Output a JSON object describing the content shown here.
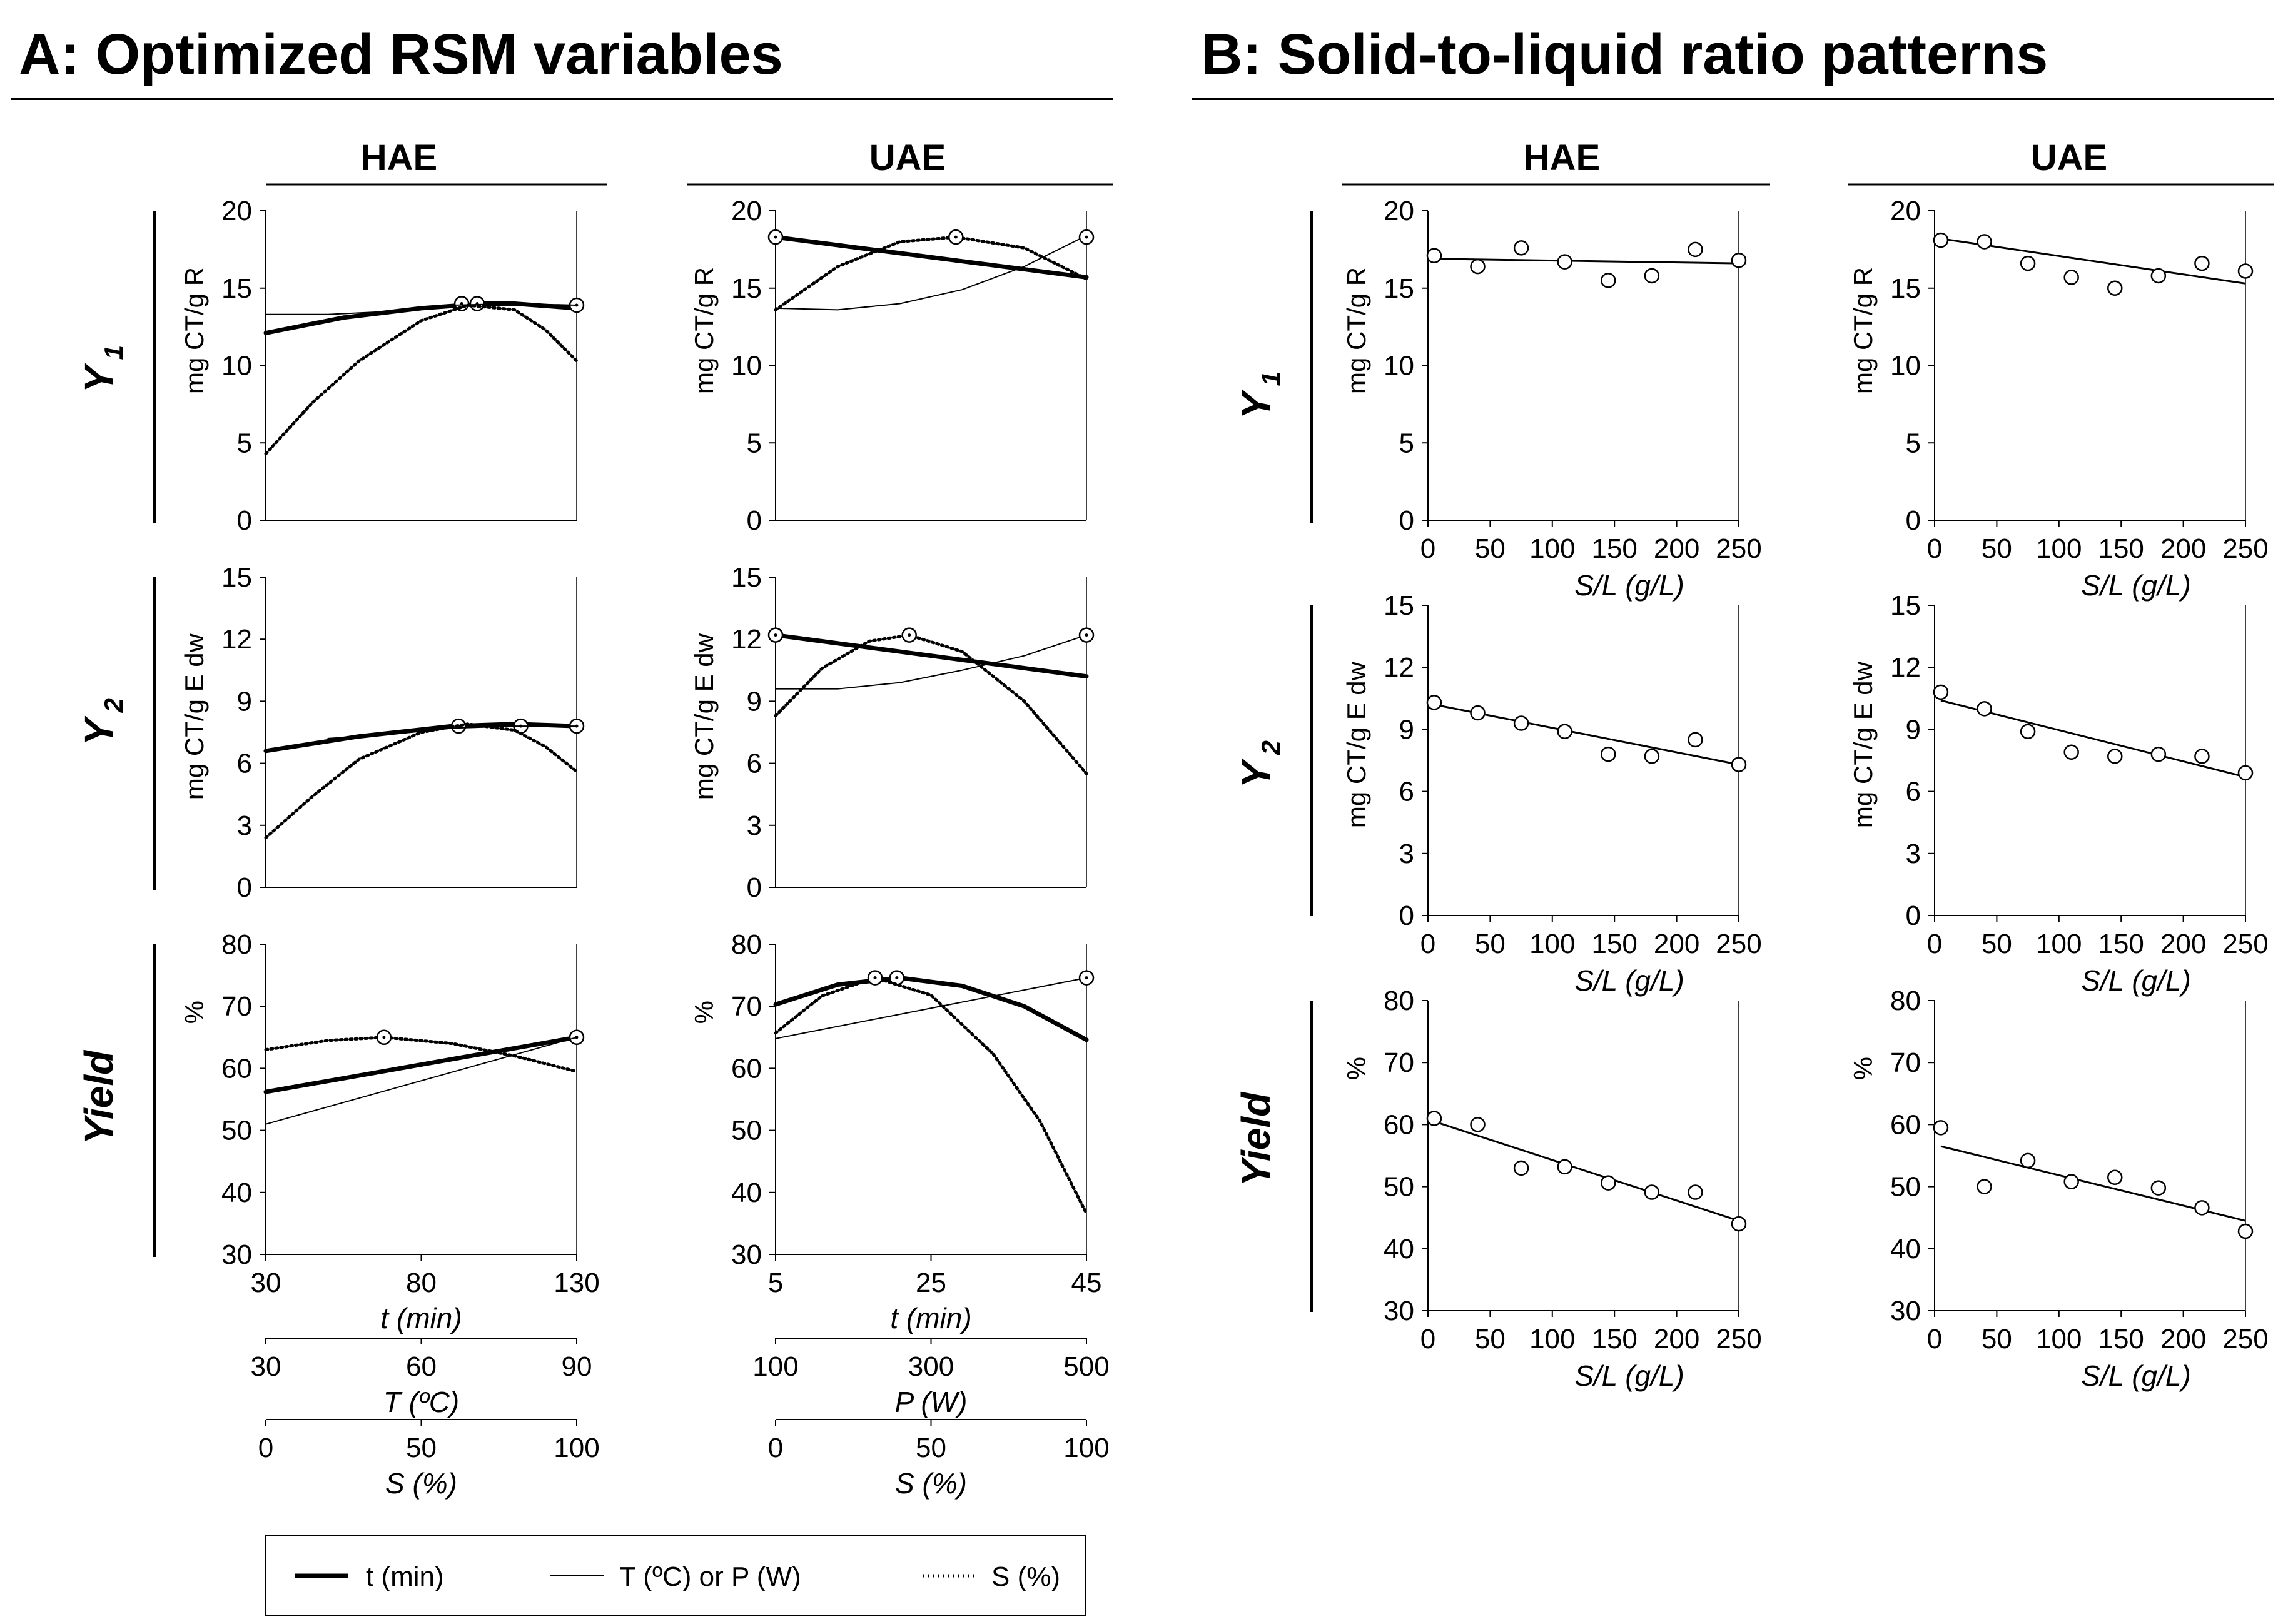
{
  "panels": {
    "A": {
      "title": "A: Optimized RSM variables"
    },
    "B": {
      "title": "B:  Solid-to-liquid ratio patterns"
    }
  },
  "columns": [
    "HAE",
    "UAE",
    "HAE",
    "UAE"
  ],
  "rows": [
    {
      "label": "Y",
      "sub": "1",
      "ylabel": "mg CT/g R",
      "ylim": [
        0,
        20
      ],
      "ticks": [
        0,
        5,
        10,
        15,
        20
      ]
    },
    {
      "label": "Y",
      "sub": "2",
      "ylabel": "mg CT/g E dw",
      "ylim": [
        0,
        15
      ],
      "ticks": [
        0,
        3,
        6,
        9,
        12,
        15
      ]
    },
    {
      "label": "Yield",
      "sub": "",
      "ylabel": "%",
      "ylim": [
        30,
        80
      ],
      "ticks": [
        30,
        40,
        50,
        60,
        70,
        80
      ]
    }
  ],
  "axesA": {
    "HAE": [
      {
        "label": "t (min)",
        "ticks": [
          30,
          80,
          130
        ],
        "range": [
          30,
          130
        ]
      },
      {
        "label": "T (ºC)",
        "ticks": [
          30,
          60,
          90
        ],
        "range": [
          30,
          90
        ]
      },
      {
        "label": "S (%)",
        "ticks": [
          0,
          50,
          100
        ],
        "range": [
          0,
          100
        ]
      }
    ],
    "UAE": [
      {
        "label": "t (min)",
        "ticks": [
          5,
          25,
          45
        ],
        "range": [
          5,
          45
        ]
      },
      {
        "label": "P (W)",
        "ticks": [
          100,
          300,
          500
        ],
        "range": [
          100,
          500
        ]
      },
      {
        "label": "S (%)",
        "ticks": [
          0,
          50,
          100
        ],
        "range": [
          0,
          100
        ]
      }
    ]
  },
  "legend": {
    "t": "t (min)",
    "tp": "T (ºC) or P (W)",
    "s": "S (%)"
  },
  "chart_data": [
    {
      "type": "line",
      "title": "A: HAE Y1",
      "ylabel": "mg CT/g R",
      "ylim": [
        0,
        20
      ],
      "x_normalized": [
        0,
        1
      ],
      "series": [
        {
          "name": "t (min)",
          "points": [
            [
              0,
              12.1
            ],
            [
              0.25,
              13.1
            ],
            [
              0.5,
              13.7
            ],
            [
              0.7,
              14.0
            ],
            [
              0.8,
              14.0
            ],
            [
              1,
              13.7
            ]
          ],
          "markers": [
            [
              0.63,
              14.0
            ],
            [
              0.68,
              14.0
            ],
            [
              1,
              13.9
            ]
          ]
        },
        {
          "name": "T (ºC) or P (W)",
          "points": [
            [
              0,
              13.3
            ],
            [
              0.2,
              13.3
            ],
            [
              0.4,
              13.5
            ],
            [
              0.6,
              13.9
            ],
            [
              0.8,
              14.0
            ],
            [
              1,
              13.9
            ]
          ],
          "markers": []
        },
        {
          "name": "S (%)",
          "points": [
            [
              0,
              4.3
            ],
            [
              0.15,
              7.6
            ],
            [
              0.3,
              10.3
            ],
            [
              0.5,
              12.9
            ],
            [
              0.65,
              13.9
            ],
            [
              0.8,
              13.6
            ],
            [
              0.9,
              12.3
            ],
            [
              1,
              10.3
            ]
          ],
          "markers": []
        }
      ]
    },
    {
      "type": "line",
      "title": "A: UAE Y1",
      "ylabel": "mg CT/g R",
      "ylim": [
        0,
        20
      ],
      "x_normalized": [
        0,
        1
      ],
      "series": [
        {
          "name": "t (min)",
          "points": [
            [
              0,
              18.3
            ],
            [
              1,
              15.7
            ]
          ],
          "markers": [
            [
              0,
              18.3
            ]
          ]
        },
        {
          "name": "T (ºC) or P (W)",
          "points": [
            [
              0,
              13.7
            ],
            [
              0.2,
              13.6
            ],
            [
              0.4,
              14.0
            ],
            [
              0.6,
              14.9
            ],
            [
              0.8,
              16.4
            ],
            [
              1,
              18.4
            ]
          ],
          "markers": [
            [
              1,
              18.3
            ]
          ]
        },
        {
          "name": "S (%)",
          "points": [
            [
              0,
              13.6
            ],
            [
              0.2,
              16.4
            ],
            [
              0.4,
              18.0
            ],
            [
              0.58,
              18.3
            ],
            [
              0.8,
              17.6
            ],
            [
              1,
              15.6
            ]
          ],
          "markers": [
            [
              0.58,
              18.3
            ]
          ]
        }
      ]
    },
    {
      "type": "line",
      "title": "A: HAE Y2",
      "ylabel": "mg CT/g E dw",
      "ylim": [
        0,
        15
      ],
      "x_normalized": [
        0,
        1
      ],
      "series": [
        {
          "name": "t (min)",
          "points": [
            [
              0,
              6.6
            ],
            [
              0.3,
              7.3
            ],
            [
              0.6,
              7.8
            ],
            [
              0.8,
              7.9
            ],
            [
              1,
              7.8
            ]
          ],
          "markers": [
            [
              0.62,
              7.8
            ],
            [
              0.82,
              7.8
            ],
            [
              1,
              7.8
            ]
          ]
        },
        {
          "name": "T (ºC) or P (W)",
          "points": [
            [
              0.2,
              7.2
            ],
            [
              0.4,
              7.4
            ],
            [
              0.6,
              7.7
            ],
            [
              0.8,
              7.8
            ],
            [
              1,
              7.8
            ]
          ],
          "markers": []
        },
        {
          "name": "S (%)",
          "points": [
            [
              0,
              2.4
            ],
            [
              0.15,
              4.4
            ],
            [
              0.3,
              6.2
            ],
            [
              0.5,
              7.5
            ],
            [
              0.65,
              7.9
            ],
            [
              0.8,
              7.6
            ],
            [
              0.9,
              6.8
            ],
            [
              1,
              5.6
            ]
          ],
          "markers": []
        }
      ]
    },
    {
      "type": "line",
      "title": "A: UAE Y2",
      "ylabel": "mg CT/g E dw",
      "ylim": [
        0,
        15
      ],
      "x_normalized": [
        0,
        1
      ],
      "series": [
        {
          "name": "t (min)",
          "points": [
            [
              0,
              12.2
            ],
            [
              1,
              10.2
            ]
          ],
          "markers": [
            [
              0,
              12.2
            ]
          ]
        },
        {
          "name": "T (ºC) or P (W)",
          "points": [
            [
              0,
              9.6
            ],
            [
              0.2,
              9.6
            ],
            [
              0.4,
              9.9
            ],
            [
              0.6,
              10.5
            ],
            [
              0.8,
              11.2
            ],
            [
              1,
              12.2
            ]
          ],
          "markers": [
            [
              1,
              12.2
            ]
          ]
        },
        {
          "name": "S (%)",
          "points": [
            [
              0,
              8.3
            ],
            [
              0.15,
              10.6
            ],
            [
              0.3,
              11.9
            ],
            [
              0.43,
              12.2
            ],
            [
              0.6,
              11.4
            ],
            [
              0.8,
              9.0
            ],
            [
              1,
              5.5
            ]
          ],
          "markers": [
            [
              0.43,
              12.2
            ]
          ]
        }
      ]
    },
    {
      "type": "line",
      "title": "A: HAE Yield",
      "ylabel": "%",
      "ylim": [
        30,
        80
      ],
      "x_normalized": [
        0,
        1
      ],
      "series": [
        {
          "name": "t (min)",
          "points": [
            [
              0,
              56.2
            ],
            [
              1,
              65.0
            ]
          ],
          "markers": [
            [
              1,
              65.0
            ]
          ]
        },
        {
          "name": "T (ºC) or P (W)",
          "points": [
            [
              0,
              51.0
            ],
            [
              1,
              65.0
            ]
          ],
          "markers": []
        },
        {
          "name": "S (%)",
          "points": [
            [
              0,
              63.0
            ],
            [
              0.2,
              64.5
            ],
            [
              0.38,
              65.0
            ],
            [
              0.6,
              64.0
            ],
            [
              0.8,
              62.0
            ],
            [
              1,
              59.5
            ]
          ],
          "markers": [
            [
              0.38,
              65.0
            ]
          ]
        }
      ]
    },
    {
      "type": "line",
      "title": "A: UAE Yield",
      "ylabel": "%",
      "ylim": [
        30,
        80
      ],
      "x_normalized": [
        0,
        1
      ],
      "series": [
        {
          "name": "t (min)",
          "points": [
            [
              0,
              70.3
            ],
            [
              0.2,
              73.5
            ],
            [
              0.4,
              74.6
            ],
            [
              0.6,
              73.3
            ],
            [
              0.8,
              70.0
            ],
            [
              1,
              64.6
            ]
          ],
          "markers": [
            [
              0.39,
              74.6
            ]
          ]
        },
        {
          "name": "T (ºC) or P (W)",
          "points": [
            [
              0,
              64.8
            ],
            [
              1,
              74.6
            ]
          ],
          "markers": [
            [
              1,
              74.6
            ]
          ]
        },
        {
          "name": "S (%)",
          "points": [
            [
              0,
              65.7
            ],
            [
              0.15,
              71.7
            ],
            [
              0.32,
              74.6
            ],
            [
              0.5,
              71.8
            ],
            [
              0.7,
              62.3
            ],
            [
              0.85,
              51.5
            ],
            [
              1,
              36.6
            ]
          ],
          "markers": [
            [
              0.32,
              74.6
            ]
          ]
        }
      ]
    },
    {
      "type": "scatter",
      "title": "B: HAE Y1",
      "xlabel": "S/L (g/L)",
      "ylabel": "mg CT/g R",
      "xlim": [
        0,
        250
      ],
      "ylim": [
        0,
        20
      ],
      "x": [
        5,
        40,
        75,
        110,
        145,
        180,
        215,
        250
      ],
      "y": [
        17.1,
        16.4,
        17.6,
        16.7,
        15.5,
        15.8,
        17.5,
        16.8
      ],
      "fit": [
        16.9,
        16.6
      ]
    },
    {
      "type": "scatter",
      "title": "B: UAE Y1",
      "xlabel": "S/L (g/L)",
      "ylabel": "mg CT/g R",
      "xlim": [
        0,
        250
      ],
      "ylim": [
        0,
        20
      ],
      "x": [
        5,
        40,
        75,
        110,
        145,
        180,
        215,
        250
      ],
      "y": [
        18.1,
        18.0,
        16.6,
        15.7,
        15.0,
        15.8,
        16.6,
        16.1
      ],
      "fit": [
        18.2,
        15.3
      ]
    },
    {
      "type": "scatter",
      "title": "B: HAE Y2",
      "xlabel": "S/L (g/L)",
      "ylabel": "mg CT/g E dw",
      "xlim": [
        0,
        250
      ],
      "ylim": [
        0,
        15
      ],
      "x": [
        5,
        40,
        75,
        110,
        145,
        180,
        215,
        250
      ],
      "y": [
        10.3,
        9.8,
        9.3,
        8.9,
        7.8,
        7.7,
        8.5,
        7.3
      ],
      "fit": [
        10.2,
        7.3
      ]
    },
    {
      "type": "scatter",
      "title": "B: UAE Y2",
      "xlabel": "S/L (g/L)",
      "ylabel": "mg CT/g E dw",
      "xlim": [
        0,
        250
      ],
      "ylim": [
        0,
        15
      ],
      "x": [
        5,
        40,
        75,
        110,
        145,
        180,
        215,
        250
      ],
      "y": [
        10.8,
        10.0,
        8.9,
        7.9,
        7.7,
        7.8,
        7.7,
        6.9
      ],
      "fit": [
        10.4,
        6.7
      ]
    },
    {
      "type": "scatter",
      "title": "B: HAE Yield",
      "xlabel": "S/L (g/L)",
      "ylabel": "%",
      "xlim": [
        0,
        250
      ],
      "ylim": [
        30,
        80
      ],
      "x": [
        5,
        40,
        75,
        110,
        145,
        180,
        215,
        250
      ],
      "y": [
        61.0,
        60.0,
        53.0,
        53.2,
        50.6,
        49.1,
        49.1,
        44.0
      ],
      "fit": [
        60.5,
        44.5
      ]
    },
    {
      "type": "scatter",
      "title": "B: UAE Yield",
      "xlabel": "S/L (g/L)",
      "ylabel": "%",
      "xlim": [
        0,
        250
      ],
      "ylim": [
        30,
        80
      ],
      "x": [
        5,
        40,
        75,
        110,
        145,
        180,
        215,
        250
      ],
      "y": [
        59.5,
        50.0,
        54.2,
        50.8,
        51.5,
        49.8,
        46.6,
        42.8
      ],
      "fit": [
        56.5,
        44.5
      ]
    }
  ]
}
